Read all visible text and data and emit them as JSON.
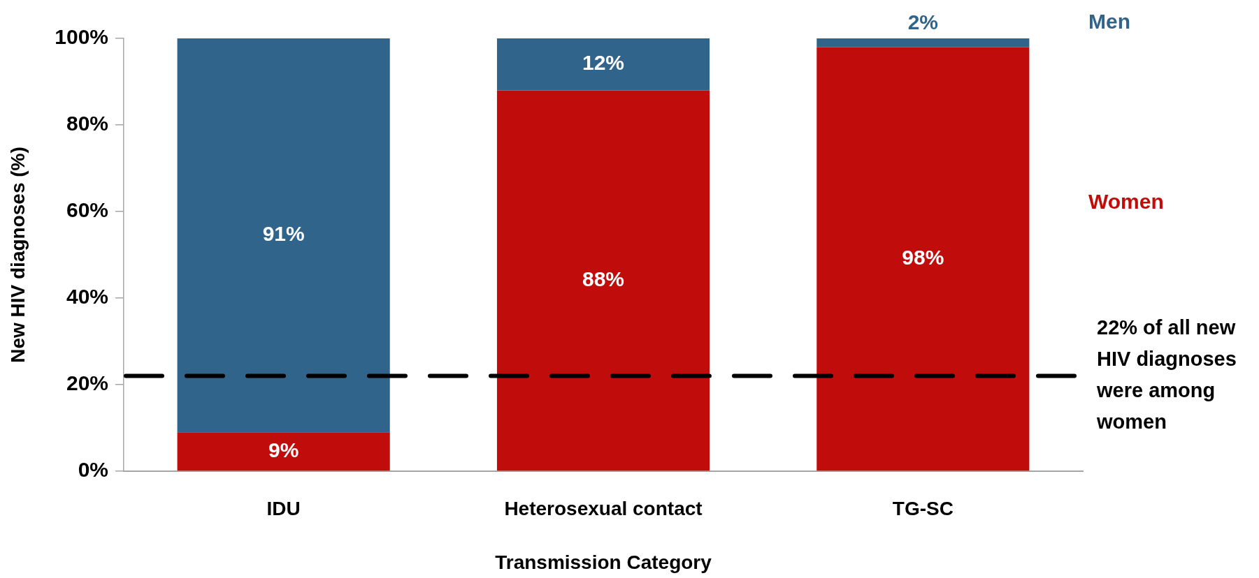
{
  "chart_data": {
    "type": "bar",
    "stacked": true,
    "xlabel": "Transmission Category",
    "ylabel": "New HIV diagnoses (%)",
    "categories": [
      "IDU",
      "Heterosexual contact",
      "TG-SC"
    ],
    "series": [
      {
        "name": "Women",
        "color": "#c10c0c",
        "values": [
          9,
          88,
          98
        ],
        "value_labels": [
          "9%",
          "88%",
          "98%"
        ]
      },
      {
        "name": "Men",
        "color": "#30648b",
        "values": [
          91,
          12,
          2
        ],
        "value_labels": [
          "91%",
          "12%",
          "2%"
        ]
      }
    ],
    "ylim": [
      0,
      100
    ],
    "yticks": [
      {
        "value": 0,
        "label": "0%"
      },
      {
        "value": 20,
        "label": "20%"
      },
      {
        "value": 40,
        "label": "40%"
      },
      {
        "value": 60,
        "label": "60%"
      },
      {
        "value": 80,
        "label": "80%"
      },
      {
        "value": 100,
        "label": "100%"
      }
    ],
    "legend": "right",
    "ref_lines": [
      {
        "axis": "y",
        "value": 22,
        "label": "22% of all new HIV diagnoses were among women",
        "color": "#000000",
        "line_style": "dashed"
      }
    ]
  }
}
